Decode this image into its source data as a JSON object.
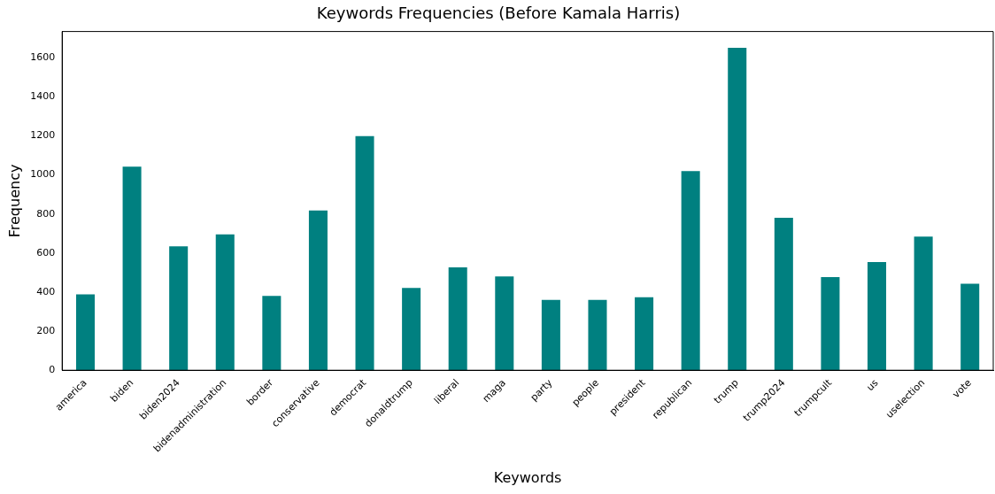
{
  "chart_data": {
    "type": "bar",
    "title": "Keywords Frequencies (Before Kamala Harris)",
    "xlabel": "Keywords",
    "ylabel": "Frequency",
    "categories": [
      "america",
      "biden",
      "biden2024",
      "bidenadministration",
      "border",
      "conservative",
      "democrat",
      "donaldtrump",
      "liberal",
      "maga",
      "party",
      "people",
      "president",
      "republican",
      "trump",
      "trump2024",
      "trumpcult",
      "us",
      "uselection",
      "vote"
    ],
    "values": [
      388,
      1042,
      634,
      695,
      380,
      818,
      1198,
      421,
      527,
      480,
      360,
      360,
      374,
      1019,
      1651,
      781,
      477,
      554,
      684,
      443
    ],
    "color": "#008080",
    "ylim": [
      0,
      1734
    ],
    "yticks": [
      0,
      200,
      400,
      600,
      800,
      1000,
      1200,
      1400,
      1600
    ],
    "grid": false,
    "legend": false
  }
}
